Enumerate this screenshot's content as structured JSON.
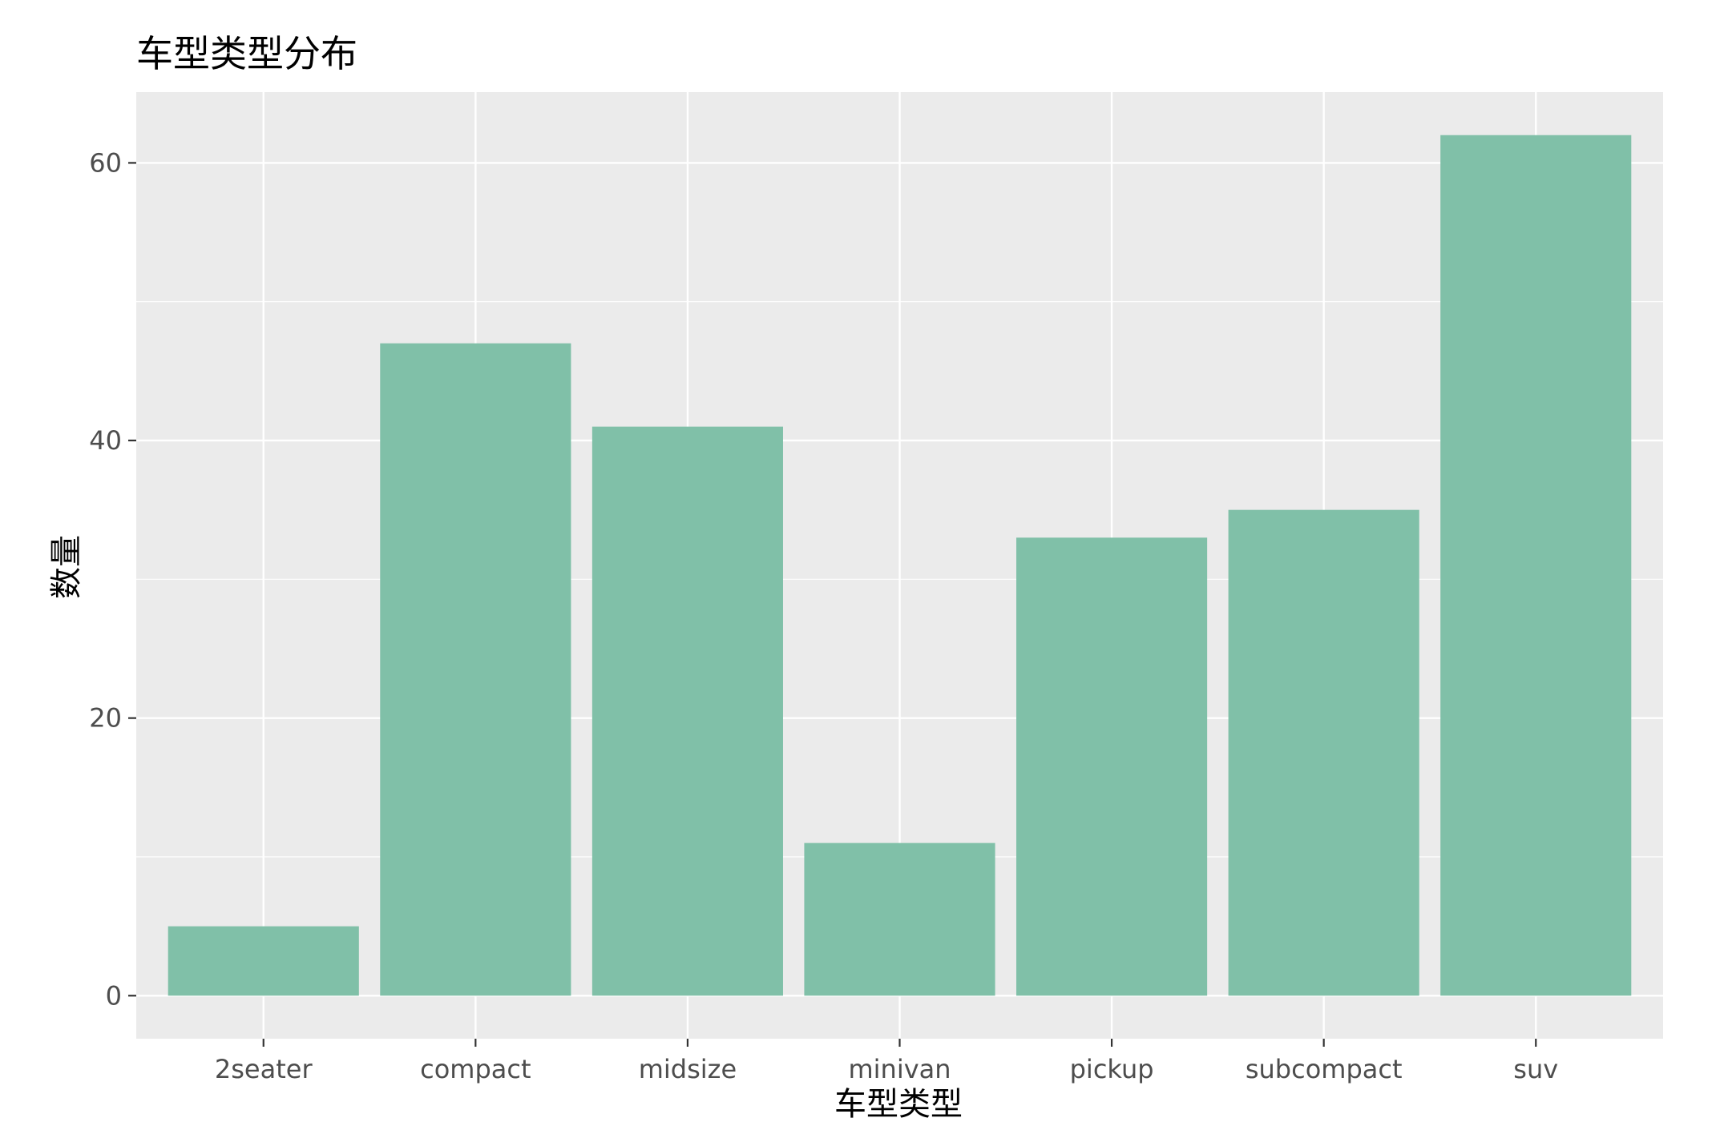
{
  "chart_data": {
    "type": "bar",
    "title": "车型类型分布",
    "xlabel": "车型类型",
    "ylabel": "数量",
    "categories": [
      "2seater",
      "compact",
      "midsize",
      "minivan",
      "pickup",
      "subcompact",
      "suv"
    ],
    "values": [
      5,
      47,
      41,
      11,
      33,
      35,
      62
    ],
    "ylim": [
      -3.1,
      65.1
    ],
    "yticks": [
      0,
      20,
      40,
      60
    ],
    "grid": true,
    "legend": "none",
    "colors": {
      "bar": "#80c0a8",
      "panel": "#ebebeb",
      "grid": "#ffffff",
      "tick_text": "#4d4d4d",
      "tick_mark": "#333333"
    }
  }
}
